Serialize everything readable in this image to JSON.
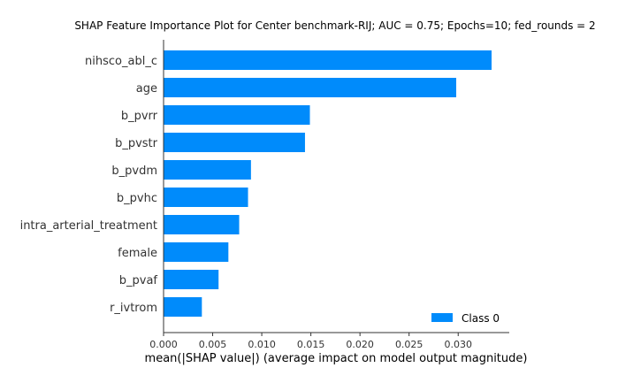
{
  "chart_data": {
    "type": "bar",
    "orientation": "horizontal",
    "title": "SHAP Feature Importance Plot for Center benchmark-RIJ; AUC = 0.75; Epochs=10; fed_rounds = 2",
    "xlabel": "mean(|SHAP value|) (average impact on model output magnitude)",
    "ylabel": "",
    "xlim": [
      0,
      0.0352
    ],
    "xticks": [
      0,
      0.005,
      0.01,
      0.015,
      0.02,
      0.025,
      0.03
    ],
    "xtick_labels": [
      "0.000",
      "0.005",
      "0.010",
      "0.015",
      "0.020",
      "0.025",
      "0.030"
    ],
    "categories": [
      "nihsco_abl_c",
      "age",
      "b_pvrr",
      "b_pvstr",
      "b_pvdm",
      "b_pvhc",
      "intra_arterial_treatment",
      "female",
      "b_pvaf",
      "r_ivtrom"
    ],
    "series": [
      {
        "name": "Class 0",
        "color": "#008bfb",
        "values": [
          0.0334,
          0.0298,
          0.0149,
          0.0144,
          0.0089,
          0.0086,
          0.0077,
          0.0066,
          0.0056,
          0.0039
        ]
      }
    ],
    "legend": {
      "position": "bottom-right"
    },
    "grid": false
  }
}
